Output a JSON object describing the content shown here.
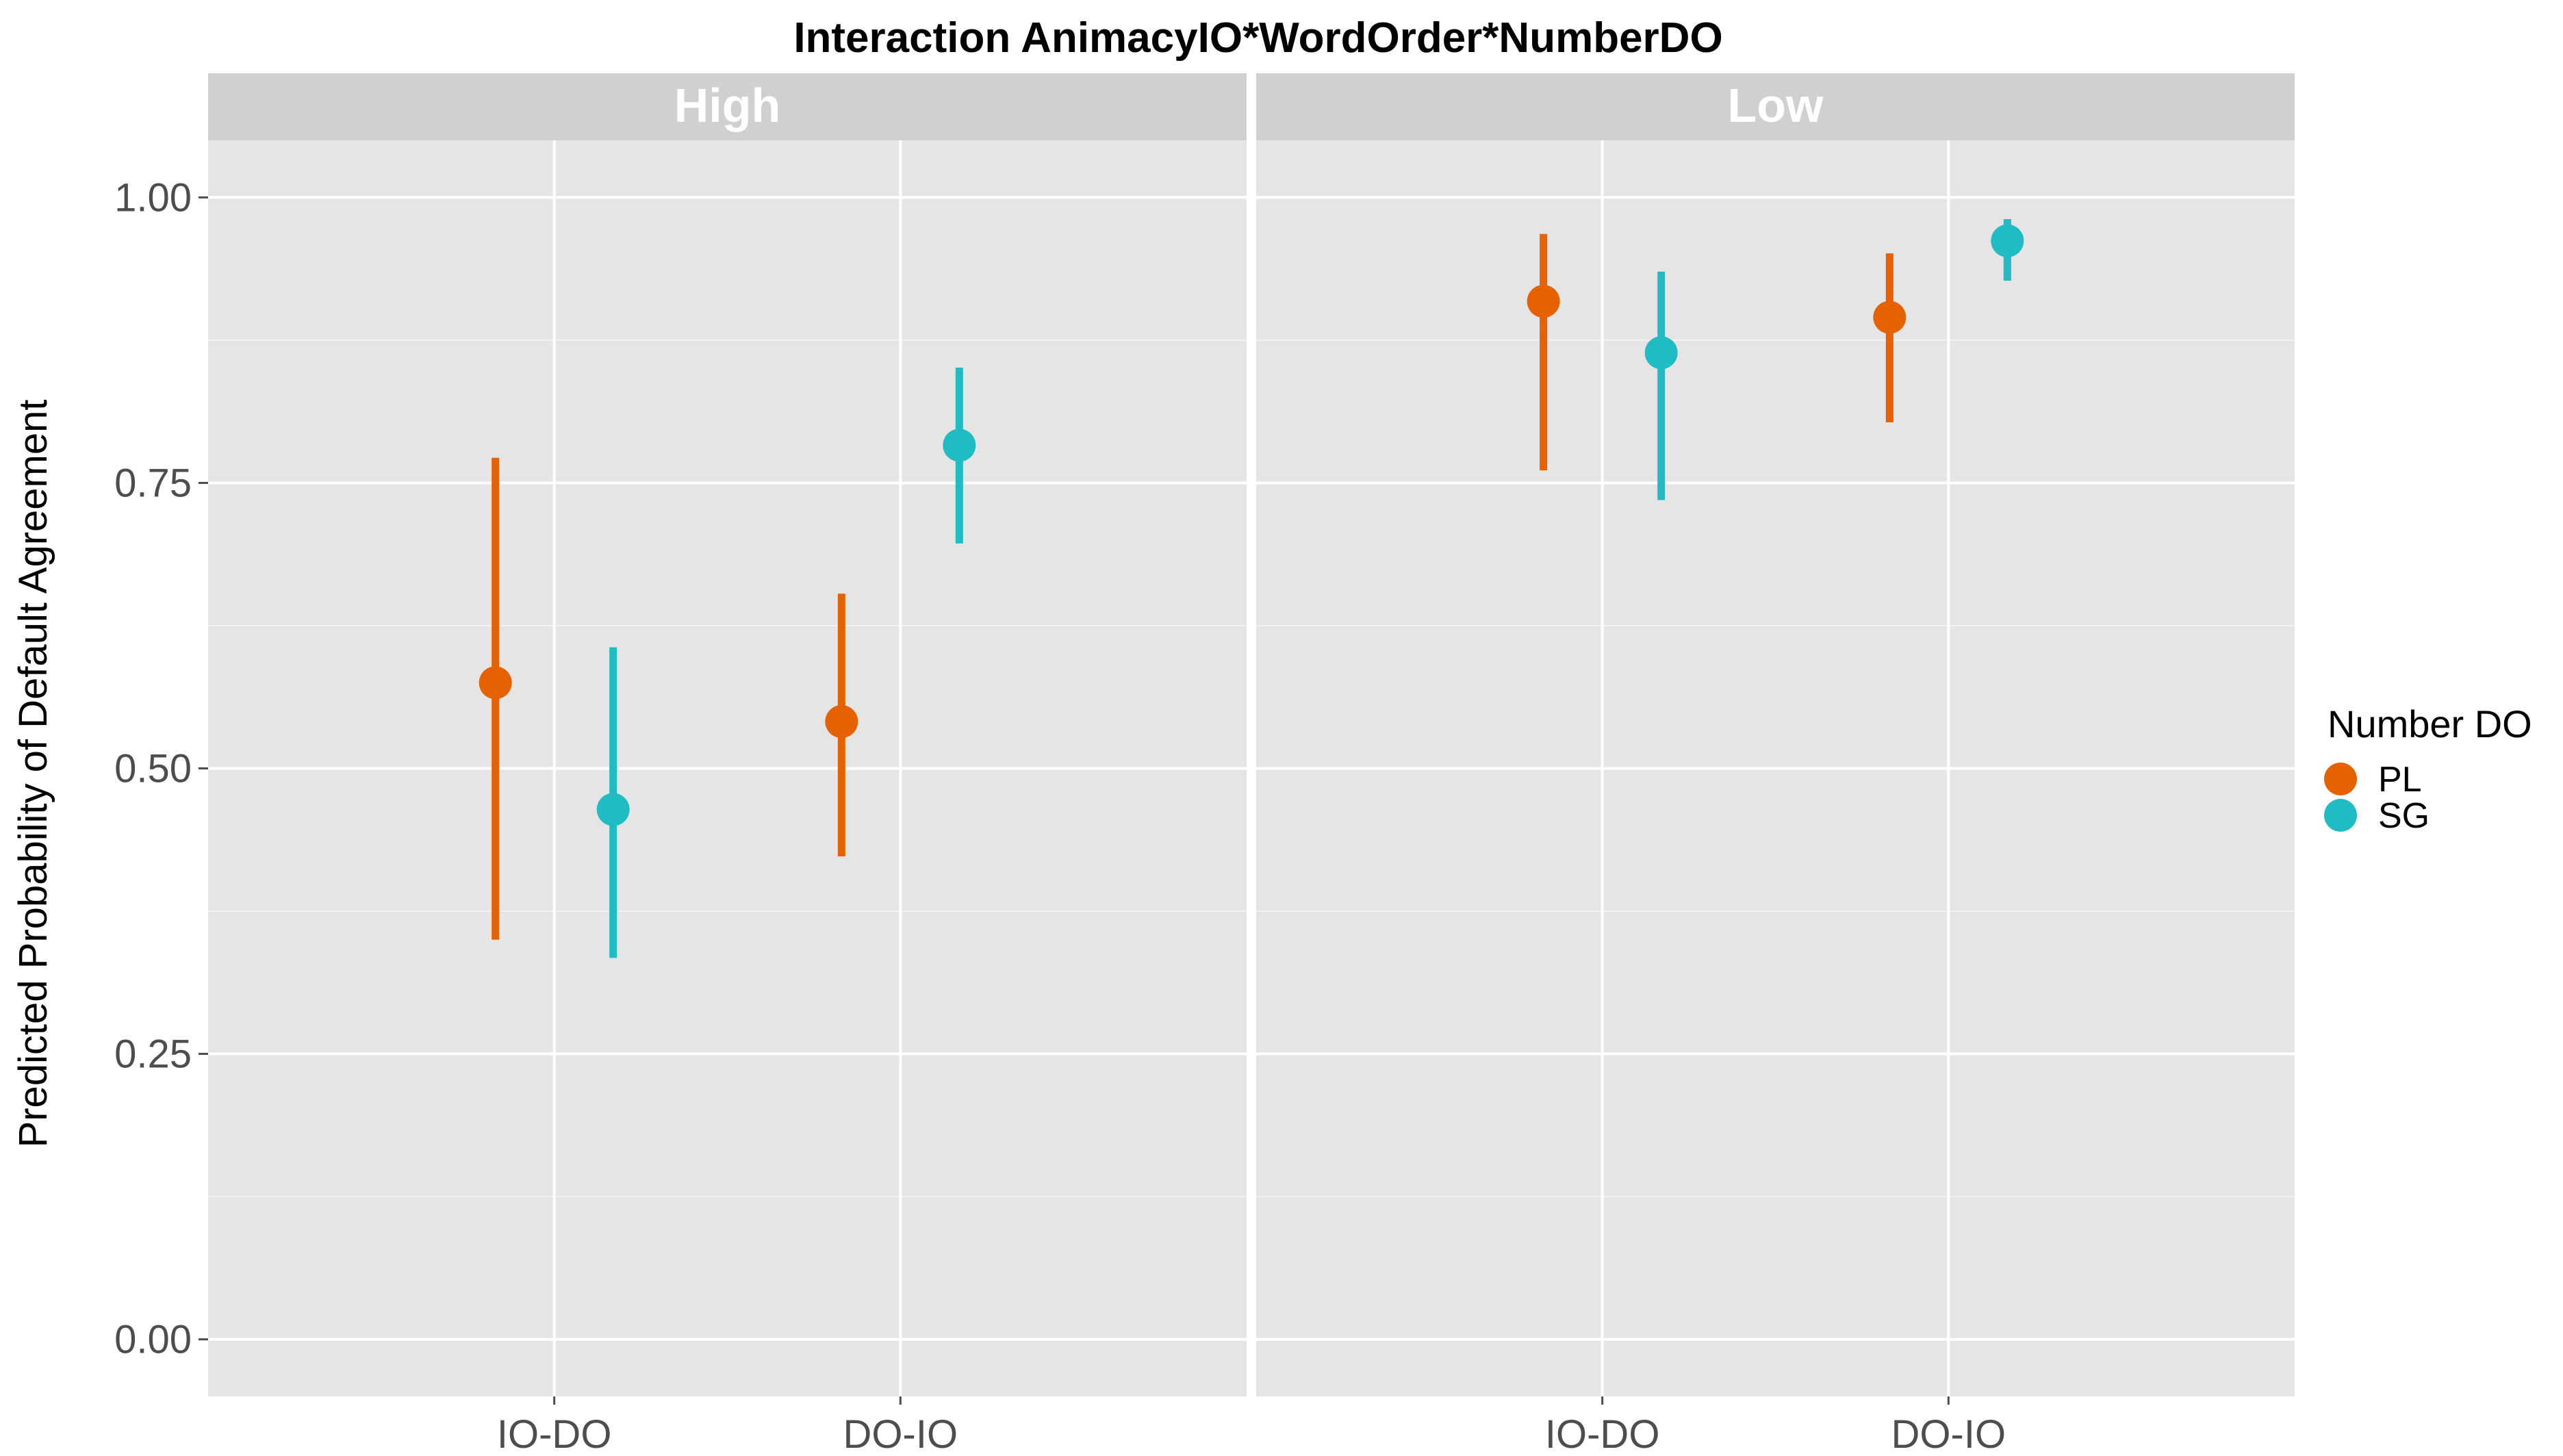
{
  "chart_data": {
    "type": "scatter",
    "subtype": "pointrange-faceted",
    "title": "Interaction AnimacyIO*WordOrder*NumberDO",
    "xlabel": "",
    "ylabel": "Predicted Probability of Default Agreement",
    "ylim": [
      -0.05,
      1.05
    ],
    "yticks": [
      0.0,
      0.25,
      0.5,
      0.75,
      1.0
    ],
    "ytick_labels": [
      "0.00",
      "0.25",
      "0.50",
      "0.75",
      "1.00"
    ],
    "categories": [
      "IO-DO",
      "DO-IO"
    ],
    "grid": true,
    "legend": {
      "title": "Number DO",
      "position": "right",
      "entries": [
        "PL",
        "SG"
      ]
    },
    "colors": {
      "PL": "#E66100",
      "SG": "#1FBCC4"
    },
    "panels": [
      {
        "label": "High",
        "series": [
          {
            "name": "PL",
            "points": [
              {
                "category": "IO-DO",
                "estimate": 0.575,
                "lower": 0.35,
                "upper": 0.772
              },
              {
                "category": "DO-IO",
                "estimate": 0.541,
                "lower": 0.423,
                "upper": 0.653
              }
            ]
          },
          {
            "name": "SG",
            "points": [
              {
                "category": "IO-DO",
                "estimate": 0.464,
                "lower": 0.334,
                "upper": 0.606
              },
              {
                "category": "DO-IO",
                "estimate": 0.783,
                "lower": 0.697,
                "upper": 0.851
              }
            ]
          }
        ]
      },
      {
        "label": "Low",
        "series": [
          {
            "name": "PL",
            "points": [
              {
                "category": "IO-DO",
                "estimate": 0.909,
                "lower": 0.761,
                "upper": 0.968
              },
              {
                "category": "DO-IO",
                "estimate": 0.895,
                "lower": 0.803,
                "upper": 0.951
              }
            ]
          },
          {
            "name": "SG",
            "points": [
              {
                "category": "IO-DO",
                "estimate": 0.864,
                "lower": 0.735,
                "upper": 0.935
              },
              {
                "category": "DO-IO",
                "estimate": 0.962,
                "lower": 0.927,
                "upper": 0.981
              }
            ]
          }
        ]
      }
    ]
  }
}
